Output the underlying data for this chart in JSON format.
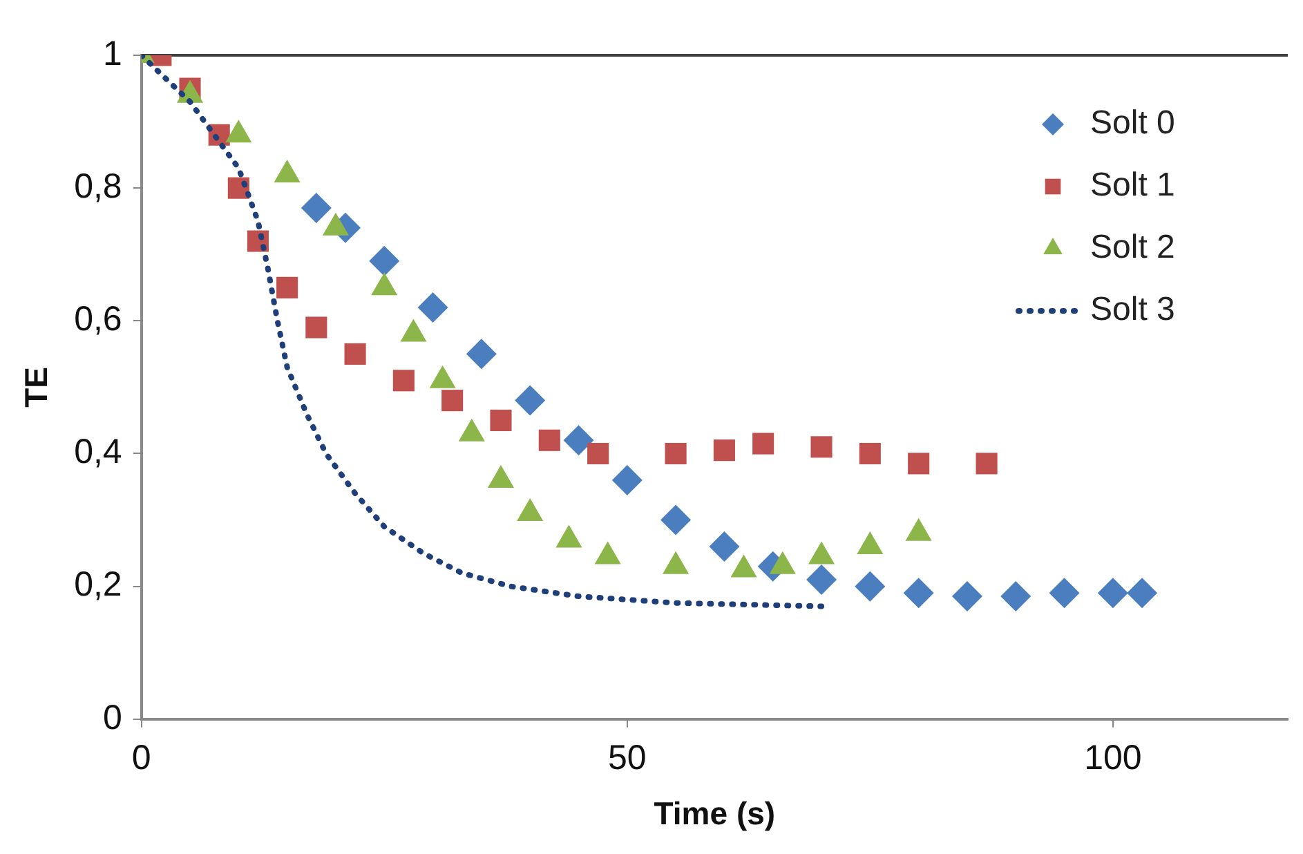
{
  "chart_data": {
    "type": "scatter",
    "xlabel": "Time (s)",
    "ylabel": "TE",
    "xlim": [
      0,
      118
    ],
    "xticks": [
      0,
      50,
      100
    ],
    "ylim": [
      0,
      1
    ],
    "yticks": [
      0,
      {
        "value": 0.2,
        "label": "0,2"
      },
      {
        "value": 0.4,
        "label": "0,4"
      },
      {
        "value": 0.6,
        "label": "0,6"
      },
      {
        "value": 0.8,
        "label": "0,8"
      },
      1
    ],
    "grid": false,
    "legend": "top right",
    "ref_lines": [
      {
        "axis": "y",
        "value": 1,
        "color": "#404040"
      }
    ],
    "series": [
      {
        "name": "Solt 0",
        "color": "#4a7ebf",
        "marker": "diamond",
        "x": [
          18,
          21,
          25,
          30,
          35,
          40,
          45,
          50,
          55,
          60,
          65,
          70,
          75,
          80,
          85,
          90,
          95,
          100,
          103
        ],
        "values": [
          0.77,
          0.74,
          0.69,
          0.62,
          0.55,
          0.48,
          0.42,
          0.36,
          0.3,
          0.26,
          0.23,
          0.21,
          0.2,
          0.19,
          0.185,
          0.185,
          0.19,
          0.19,
          0.19
        ]
      },
      {
        "name": "Solt 1",
        "color": "#c0504d",
        "marker": "square",
        "x": [
          2,
          5,
          8,
          10,
          12,
          15,
          18,
          22,
          27,
          32,
          37,
          42,
          47,
          55,
          60,
          64,
          70,
          75,
          80,
          87
        ],
        "values": [
          1,
          0.95,
          0.88,
          0.8,
          0.72,
          0.65,
          0.59,
          0.55,
          0.51,
          0.48,
          0.45,
          0.42,
          0.4,
          0.4,
          0.405,
          0.415,
          0.41,
          0.4,
          0.385,
          0.385
        ]
      },
      {
        "name": "Solt 2",
        "color": "#8cb64a",
        "marker": "triangle",
        "x": [
          0,
          5,
          10,
          15,
          20,
          25,
          28,
          31,
          34,
          37,
          40,
          44,
          48,
          55,
          62,
          66,
          70,
          75,
          80
        ],
        "values": [
          1,
          0.94,
          0.88,
          0.82,
          0.74,
          0.65,
          0.58,
          0.51,
          0.43,
          0.36,
          0.31,
          0.27,
          0.245,
          0.23,
          0.225,
          0.23,
          0.245,
          0.26,
          0.28
        ]
      },
      {
        "name": "Solt 3",
        "color": "#1f3f7a",
        "type": "line",
        "marker": "none",
        "line_style": "dotted",
        "x": [
          0,
          5,
          10,
          12,
          13,
          14,
          15,
          17,
          19,
          22,
          25,
          29,
          33,
          38,
          45,
          55,
          70
        ],
        "values": [
          1,
          0.93,
          0.83,
          0.75,
          0.68,
          0.6,
          0.53,
          0.46,
          0.4,
          0.34,
          0.29,
          0.25,
          0.22,
          0.2,
          0.185,
          0.175,
          0.17
        ]
      }
    ]
  }
}
